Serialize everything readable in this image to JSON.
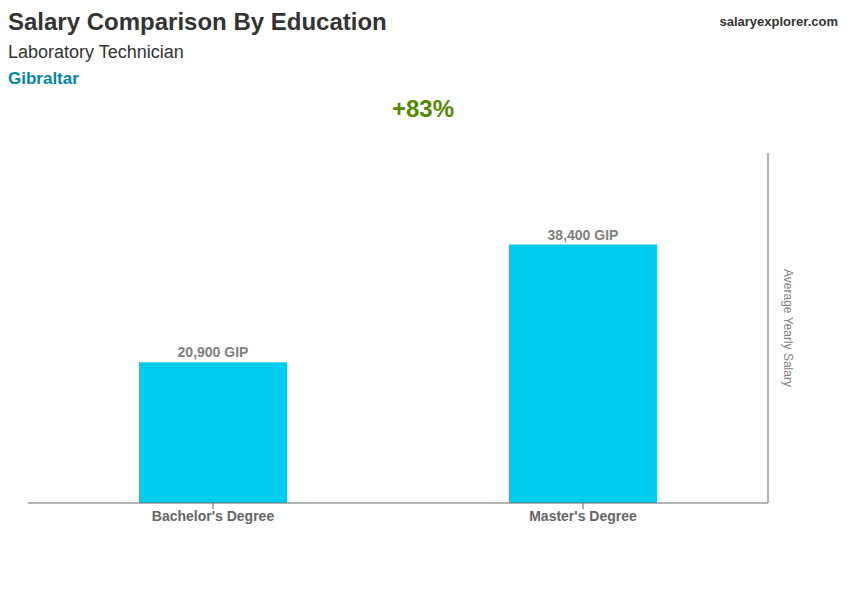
{
  "chart_data": {
    "type": "bar",
    "title": "Salary Comparison By Education",
    "subtitle": "Laboratory Technician",
    "annotations": [
      "Gibraltar",
      "salaryexplorer.com",
      "+83%"
    ],
    "y_label": "Average Yearly Salary",
    "categories": [
      "Bachelor's Degree",
      "Master's Degree"
    ],
    "values": [
      20900,
      38400
    ],
    "value_labels": [
      "20,900 GIP",
      "38,400 GIP"
    ],
    "data_labels": true,
    "color": "#00ccee",
    "ylim": [
      0,
      52000
    ],
    "grid": false,
    "tick_labels": "x"
  }
}
